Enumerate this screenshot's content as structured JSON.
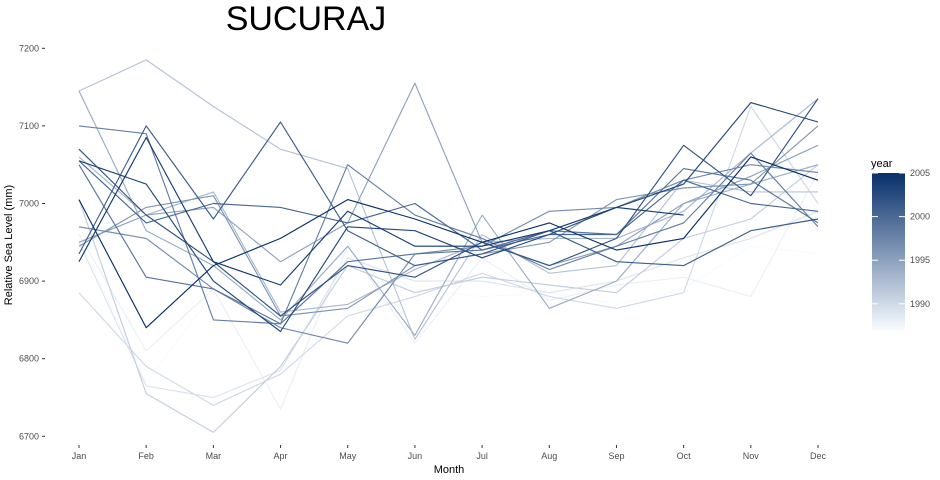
{
  "chart_data": {
    "type": "line",
    "title": "SUCURAJ",
    "xlabel": "Month",
    "ylabel": "Relative Sea Level (mm)",
    "categories": [
      "Jan",
      "Feb",
      "Mar",
      "Apr",
      "May",
      "Jun",
      "Jul",
      "Aug",
      "Sep",
      "Oct",
      "Nov",
      "Dec"
    ],
    "ylim": [
      6690,
      7210
    ],
    "yticks": [
      6700,
      6800,
      6900,
      7000,
      7100,
      7200
    ],
    "legend": {
      "title": "year",
      "placement": "right",
      "range": [
        1987,
        2005
      ],
      "ticks": [
        1990,
        1995,
        2000,
        2005
      ],
      "color_low": "#f7fbff",
      "color_high": "#08306b"
    },
    "series": [
      {
        "year": 1987,
        "values": [
          6955,
          6770,
          6885,
          6900,
          6935,
          6890,
          6880,
          6885,
          6870,
          6890,
          6945,
          6935
        ]
      },
      {
        "year": 1988,
        "values": [
          6960,
          6810,
          6890,
          6735,
          6945,
          6820,
          6930,
          6875,
          6895,
          6905,
          6880,
          7040
        ]
      },
      {
        "year": 1989,
        "values": [
          6950,
          6765,
          6750,
          6785,
          6930,
          6900,
          6900,
          6885,
          6900,
          6930,
          6955,
          6990
        ]
      },
      {
        "year": 1990,
        "values": [
          6885,
          6790,
          6740,
          6780,
          6855,
          6880,
          6910,
          6880,
          6865,
          6885,
          7125,
          7000
        ]
      },
      {
        "year": 1991,
        "values": [
          7005,
          6755,
          6705,
          6790,
          6920,
          6885,
          6905,
          6895,
          6885,
          6955,
          6980,
          7050
        ]
      },
      {
        "year": 1992,
        "values": [
          7145,
          7185,
          7125,
          7070,
          7045,
          6825,
          6960,
          6910,
          6920,
          7030,
          7015,
          7015
        ]
      },
      {
        "year": 1993,
        "values": [
          7060,
          6985,
          7015,
          6860,
          6870,
          6915,
          6950,
          6955,
          6955,
          6990,
          7065,
          7135
        ]
      },
      {
        "year": 1994,
        "values": [
          7145,
          6965,
          6920,
          6850,
          6945,
          6830,
          6985,
          6865,
          6900,
          7000,
          7025,
          7050
        ]
      },
      {
        "year": 1995,
        "values": [
          6950,
          6985,
          6995,
          6925,
          6975,
          7155,
          6950,
          6920,
          6945,
          7000,
          7035,
          7075
        ]
      },
      {
        "year": 1996,
        "values": [
          6945,
          6995,
          7010,
          6855,
          6865,
          6920,
          6935,
          6950,
          7005,
          7020,
          7025,
          7100
        ]
      },
      {
        "year": 1997,
        "values": [
          6970,
          6955,
          6890,
          6840,
          6820,
          6935,
          6945,
          6990,
          6995,
          7030,
          7050,
          7040
        ]
      },
      {
        "year": 1998,
        "values": [
          7100,
          7090,
          6850,
          6845,
          7050,
          6985,
          6955,
          6915,
          6945,
          6975,
          7065,
          6970
        ]
      },
      {
        "year": 1999,
        "values": [
          7050,
          6905,
          6890,
          6845,
          6925,
          6935,
          6940,
          6965,
          6960,
          7045,
          7030,
          6975
        ]
      },
      {
        "year": 2000,
        "values": [
          7055,
          6975,
          7000,
          6995,
          6975,
          7000,
          6940,
          6960,
          6960,
          7030,
          7000,
          6990
        ]
      },
      {
        "year": 2001,
        "values": [
          6935,
          7100,
          6980,
          7105,
          6965,
          6920,
          6935,
          6965,
          6925,
          6920,
          6965,
          6980
        ]
      },
      {
        "year": 2002,
        "values": [
          7070,
          6985,
          6925,
          6855,
          6920,
          6905,
          6950,
          6920,
          6955,
          7075,
          7010,
          7135
        ]
      },
      {
        "year": 2003,
        "values": [
          7055,
          7025,
          6900,
          6835,
          6970,
          6965,
          6930,
          6960,
          6995,
          7025,
          7130,
          7105
        ]
      },
      {
        "year": 2004,
        "values": [
          6925,
          7085,
          6925,
          6895,
          6990,
          6945,
          6945,
          6965,
          6995,
          6985,
          null,
          null
        ]
      },
      {
        "year": 2005,
        "values": [
          7005,
          6840,
          6920,
          6955,
          7005,
          6980,
          6950,
          6975,
          6940,
          6955,
          7060,
          7030
        ]
      }
    ]
  }
}
